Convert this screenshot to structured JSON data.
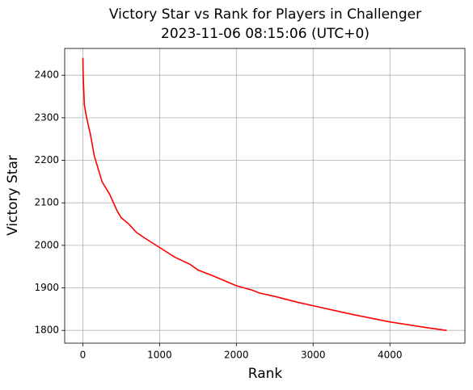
{
  "chart_data": {
    "type": "line",
    "title": "Victory Star vs Rank for Players in Challenger",
    "subtitle": "2023-11-06 08:15:06 (UTC+0)",
    "x_label": "Rank",
    "y_label": "Victory Star",
    "x": [
      1,
      5,
      20,
      50,
      100,
      150,
      250,
      350,
      450,
      500,
      600,
      700,
      800,
      1000,
      1200,
      1400,
      1500,
      1700,
      2000,
      2200,
      2300,
      2500,
      2800,
      3000,
      3500,
      4000,
      4500,
      4740
    ],
    "values": [
      2441,
      2400,
      2330,
      2300,
      2260,
      2210,
      2150,
      2120,
      2080,
      2065,
      2050,
      2030,
      2018,
      1995,
      1972,
      1955,
      1942,
      1928,
      1905,
      1895,
      1888,
      1880,
      1866,
      1858,
      1838,
      1820,
      1806,
      1800
    ],
    "color": "#ff0000",
    "xlim": [
      -236,
      4977
    ],
    "xticks": [
      0,
      1000,
      2000,
      3000,
      4000
    ],
    "ylim": [
      1770,
      2463
    ],
    "yticks": [
      1800,
      1900,
      2000,
      2100,
      2200,
      2300,
      2400
    ],
    "grid": true
  }
}
